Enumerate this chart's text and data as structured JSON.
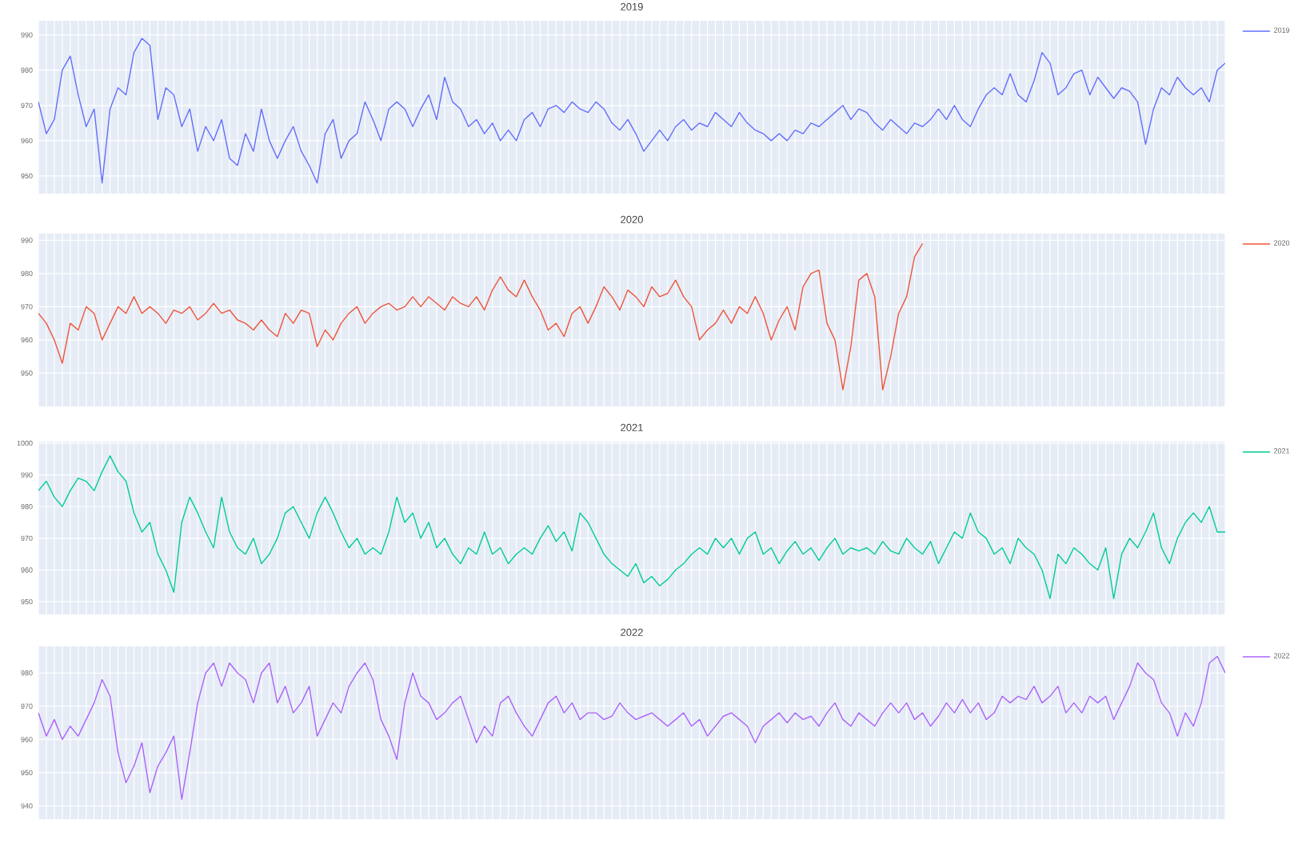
{
  "chart_data": [
    {
      "type": "line",
      "title": "2019",
      "categories": [
        null,
        null,
        null,
        null,
        null,
        null,
        null,
        null,
        null,
        null,
        null,
        null,
        null,
        null,
        null,
        null,
        null,
        null,
        null,
        null,
        null,
        null,
        null,
        null,
        null,
        null,
        null,
        null,
        null,
        null,
        null,
        null,
        null,
        null,
        null,
        null,
        null,
        null,
        null,
        null,
        null,
        null,
        null,
        null,
        null,
        null,
        null,
        null,
        null,
        null,
        null,
        null,
        null,
        null,
        null,
        null,
        null,
        null,
        null,
        null,
        null,
        null,
        null,
        null,
        null,
        null,
        null,
        null,
        null,
        null,
        null,
        null,
        null,
        null,
        null,
        null,
        null,
        null,
        null,
        null,
        null,
        null,
        null,
        null,
        null,
        null,
        null,
        null,
        null,
        null,
        null,
        null,
        null,
        null,
        null,
        null,
        null,
        null,
        null,
        null,
        null,
        null,
        null,
        null,
        null,
        null,
        null,
        null,
        null,
        null,
        null,
        null,
        null,
        null,
        null,
        null,
        null,
        null,
        null,
        null,
        null,
        null,
        null,
        null,
        null,
        null,
        null,
        null,
        null,
        null,
        null,
        null,
        null,
        null,
        null,
        null,
        null,
        null,
        null,
        null,
        null,
        null,
        null,
        null,
        null,
        null,
        null,
        null,
        null,
        null
      ],
      "series": [
        {
          "name": "2019",
          "color": "#636efa",
          "values": [
            971,
            962,
            966,
            980,
            984,
            973,
            964,
            969,
            948,
            969,
            975,
            973,
            985,
            989,
            987,
            966,
            975,
            973,
            964,
            969,
            957,
            964,
            960,
            966,
            955,
            953,
            962,
            957,
            969,
            960,
            955,
            960,
            964,
            957,
            953,
            948,
            962,
            966,
            955,
            960,
            962,
            971,
            966,
            960,
            969,
            971,
            969,
            964,
            969,
            973,
            966,
            978,
            971,
            969,
            964,
            966,
            962,
            965,
            960,
            963,
            960,
            966,
            968,
            964,
            969,
            970,
            968,
            971,
            969,
            968,
            971,
            969,
            965,
            963,
            966,
            962,
            957,
            960,
            963,
            960,
            964,
            966,
            963,
            965,
            964,
            968,
            966,
            964,
            968,
            965,
            963,
            962,
            960,
            962,
            960,
            963,
            962,
            965,
            964,
            966,
            968,
            970,
            966,
            969,
            968,
            965,
            963,
            966,
            964,
            962,
            965,
            964,
            966,
            969,
            966,
            970,
            966,
            964,
            969,
            973,
            975,
            973,
            979,
            973,
            971,
            977,
            985,
            982,
            973,
            975,
            979,
            980,
            973,
            978,
            975,
            972,
            975,
            974,
            971,
            959,
            969,
            975,
            973,
            978,
            975,
            973,
            975,
            971,
            980,
            982
          ]
        }
      ],
      "ylim": [
        945,
        994
      ],
      "yticks": [
        950,
        960,
        970,
        980,
        990
      ],
      "grid": true,
      "legend": "top right",
      "tick_labels": "y"
    },
    {
      "type": "line",
      "title": "2020",
      "categories": [
        null,
        null,
        null,
        null,
        null,
        null,
        null,
        null,
        null,
        null,
        null,
        null,
        null,
        null,
        null,
        null,
        null,
        null,
        null,
        null,
        null,
        null,
        null,
        null,
        null,
        null,
        null,
        null,
        null,
        null,
        null,
        null,
        null,
        null,
        null,
        null,
        null,
        null,
        null,
        null,
        null,
        null,
        null,
        null,
        null,
        null,
        null,
        null,
        null,
        null,
        null,
        null,
        null,
        null,
        null,
        null,
        null,
        null,
        null,
        null,
        null,
        null,
        null,
        null,
        null,
        null,
        null,
        null,
        null,
        null,
        null,
        null,
        null,
        null,
        null,
        null,
        null,
        null,
        null,
        null,
        null,
        null,
        null,
        null,
        null,
        null,
        null,
        null,
        null,
        null,
        null,
        null,
        null,
        null,
        null,
        null,
        null,
        null,
        null,
        null,
        null,
        null,
        null,
        null,
        null,
        null,
        null,
        null,
        null,
        null,
        null,
        null,
        null,
        null,
        null,
        null,
        null,
        null,
        null,
        null,
        null,
        null,
        null,
        null,
        null,
        null,
        null,
        null,
        null,
        null,
        null,
        null,
        null,
        null,
        null,
        null,
        null,
        null,
        null,
        null,
        null,
        null,
        null,
        null,
        null,
        null,
        null,
        null,
        null,
        null
      ],
      "series": [
        {
          "name": "2020",
          "color": "#ef553b",
          "values": [
            968,
            965,
            960,
            953,
            965,
            963,
            970,
            968,
            960,
            965,
            970,
            968,
            973,
            968,
            970,
            968,
            965,
            969,
            968,
            970,
            966,
            968,
            971,
            968,
            969,
            966,
            965,
            963,
            966,
            963,
            961,
            968,
            965,
            969,
            968,
            958,
            963,
            960,
            965,
            968,
            970,
            965,
            968,
            970,
            971,
            969,
            970,
            973,
            970,
            973,
            971,
            969,
            973,
            971,
            970,
            973,
            969,
            975,
            979,
            975,
            973,
            978,
            973,
            969,
            963,
            965,
            961,
            968,
            970,
            965,
            970,
            976,
            973,
            969,
            975,
            973,
            970,
            976,
            973,
            974,
            978,
            973,
            970,
            960,
            963,
            965,
            969,
            965,
            970,
            968,
            973,
            968,
            960,
            966,
            970,
            963,
            976,
            980,
            981,
            965,
            960,
            945,
            958,
            978,
            980,
            973,
            945,
            955,
            968,
            973,
            985,
            989,
            null,
            null,
            null,
            null,
            null,
            null,
            null,
            null,
            null,
            null,
            null,
            null,
            null,
            null,
            null,
            null,
            null,
            null,
            null,
            null,
            null,
            null,
            null,
            null,
            null,
            null,
            null,
            null,
            null,
            null,
            null,
            null,
            null,
            null,
            null,
            null,
            null,
            null
          ]
        }
      ],
      "ylim": [
        940,
        992
      ],
      "yticks": [
        950,
        960,
        970,
        980,
        990
      ],
      "grid": true,
      "legend": "top right",
      "tick_labels": "y"
    },
    {
      "type": "line",
      "title": "2021",
      "categories": [
        null,
        null,
        null,
        null,
        null,
        null,
        null,
        null,
        null,
        null,
        null,
        null,
        null,
        null,
        null,
        null,
        null,
        null,
        null,
        null,
        null,
        null,
        null,
        null,
        null,
        null,
        null,
        null,
        null,
        null,
        null,
        null,
        null,
        null,
        null,
        null,
        null,
        null,
        null,
        null,
        null,
        null,
        null,
        null,
        null,
        null,
        null,
        null,
        null,
        null,
        null,
        null,
        null,
        null,
        null,
        null,
        null,
        null,
        null,
        null,
        null,
        null,
        null,
        null,
        null,
        null,
        null,
        null,
        null,
        null,
        null,
        null,
        null,
        null,
        null,
        null,
        null,
        null,
        null,
        null,
        null,
        null,
        null,
        null,
        null,
        null,
        null,
        null,
        null,
        null,
        null,
        null,
        null,
        null,
        null,
        null,
        null,
        null,
        null,
        null,
        null,
        null,
        null,
        null,
        null,
        null,
        null,
        null,
        null,
        null,
        null,
        null,
        null,
        null,
        null,
        null,
        null,
        null,
        null,
        null,
        null,
        null,
        null,
        null,
        null,
        null,
        null,
        null,
        null,
        null,
        null,
        null,
        null,
        null,
        null,
        null,
        null,
        null,
        null,
        null,
        null,
        null,
        null,
        null,
        null,
        null,
        null,
        null,
        null,
        null
      ],
      "series": [
        {
          "name": "2021",
          "color": "#00cc96",
          "values": [
            985,
            988,
            983,
            980,
            985,
            989,
            988,
            985,
            991,
            996,
            991,
            988,
            978,
            972,
            975,
            965,
            960,
            953,
            975,
            983,
            978,
            972,
            967,
            983,
            972,
            967,
            965,
            970,
            962,
            965,
            970,
            978,
            980,
            975,
            970,
            978,
            983,
            978,
            972,
            967,
            970,
            965,
            967,
            965,
            972,
            983,
            975,
            978,
            970,
            975,
            967,
            970,
            965,
            962,
            967,
            965,
            972,
            965,
            967,
            962,
            965,
            967,
            965,
            970,
            974,
            969,
            972,
            966,
            978,
            975,
            970,
            965,
            962,
            960,
            958,
            962,
            956,
            958,
            955,
            957,
            960,
            962,
            965,
            967,
            965,
            970,
            967,
            970,
            965,
            970,
            972,
            965,
            967,
            962,
            966,
            969,
            965,
            967,
            963,
            967,
            970,
            965,
            967,
            966,
            967,
            965,
            969,
            966,
            965,
            970,
            967,
            965,
            969,
            962,
            967,
            972,
            970,
            978,
            972,
            970,
            965,
            967,
            962,
            970,
            967,
            965,
            960,
            951,
            965,
            962,
            967,
            965,
            962,
            960,
            967,
            951,
            965,
            970,
            967,
            972,
            978,
            967,
            962,
            970,
            975,
            978,
            975,
            980,
            972,
            972
          ]
        }
      ],
      "ylim": [
        946,
        1000.5
      ],
      "yticks": [
        950,
        960,
        970,
        980,
        990,
        1000
      ],
      "grid": true,
      "legend": "top right",
      "tick_labels": "y"
    },
    {
      "type": "line",
      "title": "2022",
      "categories": [
        null,
        null,
        null,
        null,
        null,
        null,
        null,
        null,
        null,
        null,
        null,
        null,
        null,
        null,
        null,
        null,
        null,
        null,
        null,
        null,
        null,
        null,
        null,
        null,
        null,
        null,
        null,
        null,
        null,
        null,
        null,
        null,
        null,
        null,
        null,
        null,
        null,
        null,
        null,
        null,
        null,
        null,
        null,
        null,
        null,
        null,
        null,
        null,
        null,
        null,
        null,
        null,
        null,
        null,
        null,
        null,
        null,
        null,
        null,
        null,
        null,
        null,
        null,
        null,
        null,
        null,
        null,
        null,
        null,
        null,
        null,
        null,
        null,
        null,
        null,
        null,
        null,
        null,
        null,
        null,
        null,
        null,
        null,
        null,
        null,
        null,
        null,
        null,
        null,
        null,
        null,
        null,
        null,
        null,
        null,
        null,
        null,
        null,
        null,
        null,
        null,
        null,
        null,
        null,
        null,
        null,
        null,
        null,
        null,
        null,
        null,
        null,
        null,
        null,
        null,
        null,
        null,
        null,
        null,
        null,
        null,
        null,
        null,
        null,
        null,
        null,
        null,
        null,
        null,
        null,
        null,
        null,
        null,
        null,
        null,
        null,
        null,
        null,
        null,
        null,
        null,
        null,
        null,
        null,
        null,
        null,
        null,
        null,
        null,
        null
      ],
      "series": [
        {
          "name": "2022",
          "color": "#ab63fa",
          "values": [
            968,
            961,
            966,
            960,
            964,
            961,
            966,
            971,
            978,
            973,
            956,
            947,
            952,
            959,
            944,
            952,
            956,
            961,
            942,
            956,
            971,
            980,
            983,
            976,
            983,
            980,
            978,
            971,
            980,
            983,
            971,
            976,
            968,
            971,
            976,
            961,
            966,
            971,
            968,
            976,
            980,
            983,
            978,
            966,
            961,
            954,
            971,
            980,
            973,
            971,
            966,
            968,
            971,
            973,
            966,
            959,
            964,
            961,
            971,
            973,
            968,
            964,
            961,
            966,
            971,
            973,
            968,
            971,
            966,
            968,
            968,
            966,
            967,
            971,
            968,
            966,
            967,
            968,
            966,
            964,
            966,
            968,
            964,
            966,
            961,
            964,
            967,
            968,
            966,
            964,
            959,
            964,
            966,
            968,
            965,
            968,
            966,
            967,
            964,
            968,
            971,
            966,
            964,
            968,
            966,
            964,
            968,
            971,
            968,
            971,
            966,
            968,
            964,
            967,
            971,
            968,
            972,
            968,
            971,
            966,
            968,
            973,
            971,
            973,
            972,
            976,
            971,
            973,
            976,
            968,
            971,
            968,
            973,
            971,
            973,
            966,
            971,
            976,
            983,
            980,
            978,
            971,
            968,
            961,
            968,
            964,
            971,
            983,
            985,
            980
          ]
        }
      ],
      "ylim": [
        936,
        988
      ],
      "yticks": [
        940,
        950,
        960,
        970,
        980
      ],
      "grid": true,
      "legend": "top right"
    }
  ]
}
